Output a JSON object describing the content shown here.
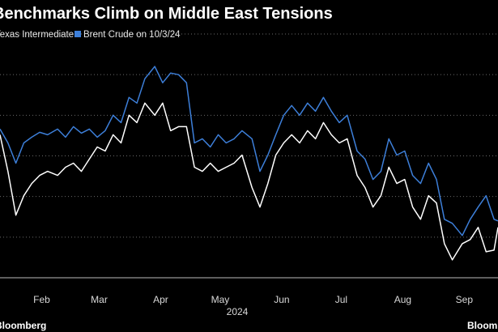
{
  "chart_data": {
    "type": "line",
    "title": "Benchmarks Climb on Middle East Tensions",
    "xlabel": "2024",
    "source": "Bloomberg",
    "logo": "Bloomberg",
    "xlim": [
      25,
      276
    ],
    "xticks": [
      {
        "value": 46,
        "label": "Feb"
      },
      {
        "value": 75,
        "label": "Mar"
      },
      {
        "value": 106,
        "label": "Apr"
      },
      {
        "value": 136,
        "label": "May"
      },
      {
        "value": 167,
        "label": "Jun"
      },
      {
        "value": 197,
        "label": "Jul"
      },
      {
        "value": 228,
        "label": "Aug"
      },
      {
        "value": 259,
        "label": "Sep"
      }
    ],
    "ylim": [
      65,
      95.2
    ],
    "yticks": [
      65,
      70,
      75,
      80,
      85,
      90,
      95
    ],
    "grid": true,
    "x": [
      25,
      29,
      33,
      37,
      41,
      45,
      49,
      54,
      58,
      62,
      66,
      70,
      74,
      78,
      82,
      86,
      90,
      94,
      98,
      103,
      107,
      111,
      115,
      119,
      123,
      127,
      131,
      135,
      139,
      143,
      147,
      152,
      156,
      160,
      164,
      168,
      172,
      176,
      180,
      184,
      188,
      192,
      196,
      200,
      205,
      209,
      213,
      217,
      221,
      225,
      229,
      233,
      237,
      241,
      245,
      249,
      253,
      258,
      262,
      266,
      270,
      274,
      276
    ],
    "series": [
      {
        "name": "West Texas Intermediate",
        "color": "#ffffff",
        "values": [
          82.6,
          78.1,
          72.7,
          75.1,
          76.6,
          77.6,
          78.1,
          77.6,
          78.6,
          79.1,
          78.1,
          79.6,
          81.1,
          80.6,
          82.6,
          81.6,
          85.0,
          84.1,
          86.5,
          85.0,
          86.5,
          83.1,
          83.6,
          83.6,
          78.6,
          78.1,
          79.1,
          78.1,
          78.6,
          79.1,
          80.1,
          76.1,
          73.7,
          76.6,
          80.1,
          81.6,
          82.6,
          81.6,
          83.1,
          82.1,
          84.1,
          82.6,
          81.6,
          82.1,
          77.6,
          76.1,
          73.7,
          75.1,
          78.6,
          76.6,
          77.1,
          73.7,
          72.2,
          75.1,
          74.2,
          69.2,
          67.2,
          69.2,
          69.7,
          71.2,
          68.2,
          68.4,
          71.2
        ]
      },
      {
        "name": "Brent Crude on 10/3/24",
        "color": "#3d7fd9",
        "values": [
          83.3,
          81.6,
          79.1,
          81.6,
          82.3,
          82.9,
          82.6,
          83.3,
          82.3,
          83.6,
          82.8,
          83.3,
          82.3,
          83.1,
          85.0,
          84.1,
          87.2,
          86.5,
          89.5,
          91.0,
          89.0,
          90.2,
          90.0,
          89.0,
          81.6,
          82.1,
          81.1,
          82.6,
          81.6,
          82.1,
          83.1,
          82.1,
          78.1,
          80.1,
          82.6,
          85.0,
          86.2,
          85.0,
          86.5,
          85.5,
          87.2,
          85.5,
          84.1,
          85.0,
          80.6,
          79.6,
          77.1,
          78.1,
          82.1,
          80.1,
          80.6,
          77.6,
          76.6,
          79.1,
          77.1,
          72.2,
          71.7,
          70.2,
          72.2,
          73.7,
          75.1,
          72.2,
          72.0
        ]
      }
    ]
  }
}
